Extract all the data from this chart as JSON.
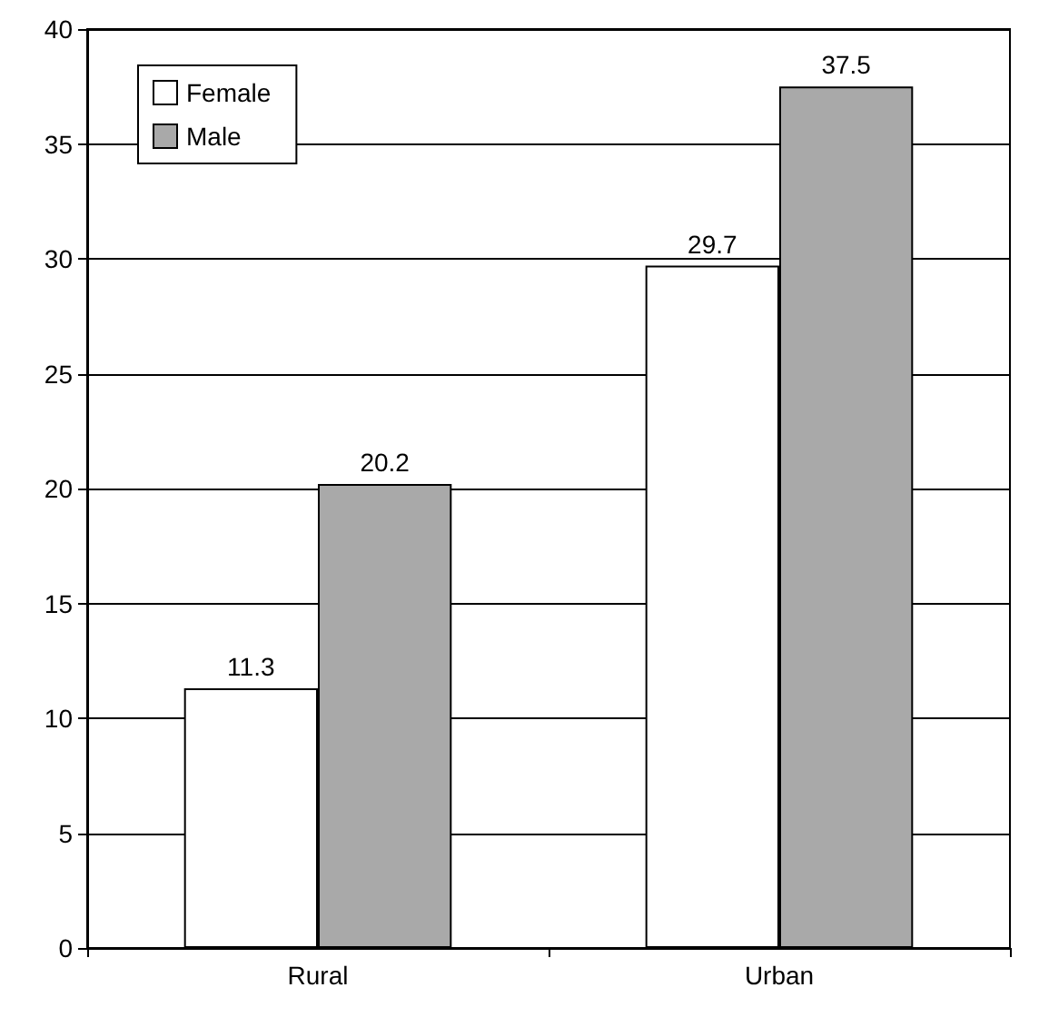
{
  "chart_data": {
    "type": "bar",
    "categories": [
      "Rural",
      "Urban"
    ],
    "series": [
      {
        "name": "Female",
        "color": "#ffffff",
        "values": [
          11.3,
          29.7
        ]
      },
      {
        "name": "Male",
        "color": "#a9a9a9",
        "values": [
          20.2,
          37.5
        ]
      }
    ],
    "ylim": [
      0,
      40
    ],
    "yticks": [
      0,
      5,
      10,
      15,
      20,
      25,
      30,
      35,
      40
    ],
    "grid": "y",
    "legend": "top left",
    "data_labels": true
  }
}
